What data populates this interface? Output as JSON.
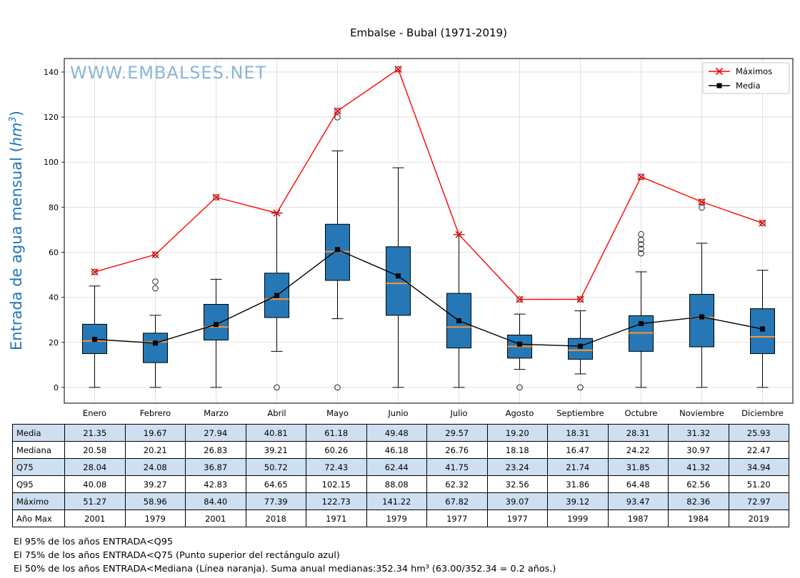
{
  "title": "Embalse - Bubal (1971-2019)",
  "watermark": "WWW.EMBALSES.NET",
  "ylabel": {
    "prefix": "Entrada de agua mensual (",
    "unit": "hm",
    "sup": "3",
    "suffix": ")"
  },
  "legend": {
    "maximos": "Máximos",
    "media": "Media"
  },
  "chart_data": {
    "type": "boxplot",
    "title": "Embalse - Bubal (1971-2019)",
    "xlabel": "",
    "ylabel": "Entrada de agua mensual (hm³)",
    "categories": [
      "Enero",
      "Febrero",
      "Marzo",
      "Abril",
      "Mayo",
      "Junio",
      "Julio",
      "Agosto",
      "Septiembre",
      "Octubre",
      "Noviembre",
      "Diciembre"
    ],
    "ylim": [
      -7,
      146
    ],
    "yticks": [
      0,
      20,
      40,
      60,
      80,
      100,
      120,
      140
    ],
    "grid": true,
    "legend_position": "upper right",
    "series": [
      {
        "name": "Máximos",
        "type": "line",
        "marker": "x",
        "color": "#ff0000",
        "values": [
          51.27,
          58.96,
          84.4,
          77.39,
          122.73,
          141.22,
          67.82,
          39.07,
          39.12,
          93.47,
          82.36,
          72.97
        ]
      },
      {
        "name": "Media",
        "type": "line",
        "marker": "square",
        "color": "#000000",
        "values": [
          21.35,
          19.67,
          27.94,
          40.81,
          61.18,
          49.48,
          29.57,
          19.2,
          18.31,
          28.31,
          31.32,
          25.93
        ]
      }
    ],
    "boxes": [
      {
        "month": "Enero",
        "whisker_low": 0,
        "q1": 15.0,
        "median": 20.58,
        "q3": 28.04,
        "whisker_high": 45.0,
        "outliers": [
          51.27
        ]
      },
      {
        "month": "Febrero",
        "whisker_low": 0,
        "q1": 11.0,
        "median": 20.21,
        "q3": 24.08,
        "whisker_high": 32.0,
        "outliers": [
          44.0,
          47.0,
          58.96
        ]
      },
      {
        "month": "Marzo",
        "whisker_low": 0,
        "q1": 21.0,
        "median": 26.83,
        "q3": 36.87,
        "whisker_high": 48.0,
        "outliers": [
          84.4
        ]
      },
      {
        "month": "Abril",
        "whisker_low": 16.0,
        "q1": 31.0,
        "median": 39.21,
        "q3": 50.72,
        "whisker_high": 77.39,
        "outliers": [
          0
        ]
      },
      {
        "month": "Mayo",
        "whisker_low": 30.5,
        "q1": 47.5,
        "median": 60.26,
        "q3": 72.43,
        "whisker_high": 105.0,
        "outliers": [
          0,
          119.9,
          122.73
        ]
      },
      {
        "month": "Junio",
        "whisker_low": 0,
        "q1": 32.0,
        "median": 46.18,
        "q3": 62.44,
        "whisker_high": 97.5,
        "outliers": [
          141.22
        ]
      },
      {
        "month": "Julio",
        "whisker_low": 0,
        "q1": 17.5,
        "median": 26.76,
        "q3": 41.75,
        "whisker_high": 67.82,
        "outliers": []
      },
      {
        "month": "Agosto",
        "whisker_low": 8.0,
        "q1": 13.0,
        "median": 18.18,
        "q3": 23.24,
        "whisker_high": 32.56,
        "outliers": [
          0,
          39.07
        ]
      },
      {
        "month": "Septiembre",
        "whisker_low": 6.0,
        "q1": 12.5,
        "median": 16.47,
        "q3": 21.74,
        "whisker_high": 34.0,
        "outliers": [
          0,
          39.12
        ]
      },
      {
        "month": "Octubre",
        "whisker_low": 0,
        "q1": 16.0,
        "median": 24.22,
        "q3": 31.85,
        "whisker_high": 51.3,
        "outliers": [
          59.5,
          61.5,
          63.5,
          65.5,
          68.0,
          93.47
        ]
      },
      {
        "month": "Noviembre",
        "whisker_low": 0,
        "q1": 18.0,
        "median": 30.97,
        "q3": 41.32,
        "whisker_high": 64.0,
        "outliers": [
          79.8,
          82.36
        ]
      },
      {
        "month": "Diciembre",
        "whisker_low": 0,
        "q1": 15.0,
        "median": 22.47,
        "q3": 34.94,
        "whisker_high": 52.0,
        "outliers": [
          72.97
        ]
      }
    ],
    "colors": {
      "box_fill": "#2578b5",
      "box_edge": "#000000",
      "median": "#ff9333",
      "grid": "#d9d9d9",
      "axis": "#262626",
      "maximos": "#ff0000",
      "media": "#000000",
      "watermark": "#8ab6d6",
      "ylabel": "#1f77b4"
    }
  },
  "table": {
    "row_labels": [
      "Media",
      "Mediana",
      "Q75",
      "Q95",
      "Máximo",
      "Año Max"
    ],
    "columns": [
      "Enero",
      "Febrero",
      "Marzo",
      "Abril",
      "Mayo",
      "Junio",
      "Julio",
      "Agosto",
      "Septiembre",
      "Octubre",
      "Noviembre",
      "Diciembre"
    ],
    "rows": [
      {
        "label": "Media",
        "values": [
          "21.35",
          "19.67",
          "27.94",
          "40.81",
          "61.18",
          "49.48",
          "29.57",
          "19.20",
          "18.31",
          "28.31",
          "31.32",
          "25.93"
        ]
      },
      {
        "label": "Mediana",
        "values": [
          "20.58",
          "20.21",
          "26.83",
          "39.21",
          "60.26",
          "46.18",
          "26.76",
          "18.18",
          "16.47",
          "24.22",
          "30.97",
          "22.47"
        ]
      },
      {
        "label": "Q75",
        "values": [
          "28.04",
          "24.08",
          "36.87",
          "50.72",
          "72.43",
          "62.44",
          "41.75",
          "23.24",
          "21.74",
          "31.85",
          "41.32",
          "34.94"
        ]
      },
      {
        "label": "Q95",
        "values": [
          "40.08",
          "39.27",
          "42.83",
          "64.65",
          "102.15",
          "88.08",
          "62.32",
          "32.56",
          "31.86",
          "64.48",
          "62.56",
          "51.20"
        ]
      },
      {
        "label": "Máximo",
        "values": [
          "51.27",
          "58.96",
          "84.40",
          "77.39",
          "122.73",
          "141.22",
          "67.82",
          "39.07",
          "39.12",
          "93.47",
          "82.36",
          "72.97"
        ]
      },
      {
        "label": "Año Max",
        "values": [
          "2001",
          "1979",
          "2001",
          "2018",
          "1971",
          "1979",
          "1977",
          "1977",
          "1999",
          "1987",
          "1984",
          "2019"
        ]
      }
    ],
    "shade_color": "#cfdff2"
  },
  "footnotes": [
    "El 95% de los años ENTRADA<Q95",
    "El 75% de los años ENTRADA<Q75 (Punto superior del rectángulo azul)",
    "El 50% de los años ENTRADA<Mediana (Línea naranja). Suma anual medianas:352.34 hm³ (63.00/352.34 = 0.2 años.)"
  ]
}
